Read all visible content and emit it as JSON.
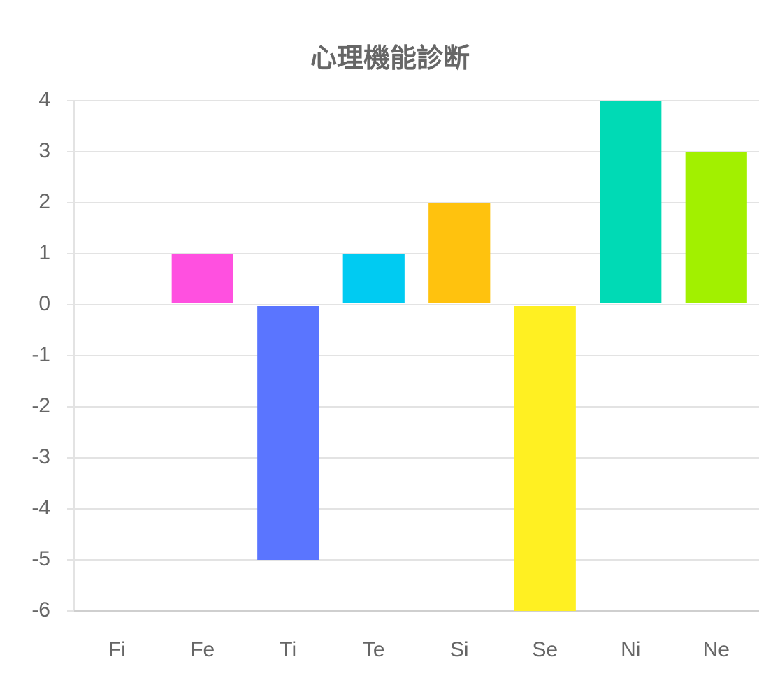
{
  "chart_data": {
    "type": "bar",
    "title": "心理機能診断",
    "categories": [
      "Fi",
      "Fe",
      "Ti",
      "Te",
      "Si",
      "Se",
      "Ni",
      "Ne"
    ],
    "values": [
      0,
      1,
      -5,
      1,
      2,
      -6,
      4,
      3
    ],
    "colors": [
      "#ff6384",
      "#ff50e0",
      "#5a75ff",
      "#00cbf2",
      "#ffc20e",
      "#fff022",
      "#00dab5",
      "#a2f000"
    ],
    "ylim": [
      -6,
      4
    ],
    "yticks": [
      -6,
      -5,
      -4,
      -3,
      -2,
      -1,
      0,
      1,
      2,
      3,
      4
    ],
    "grid": true
  }
}
